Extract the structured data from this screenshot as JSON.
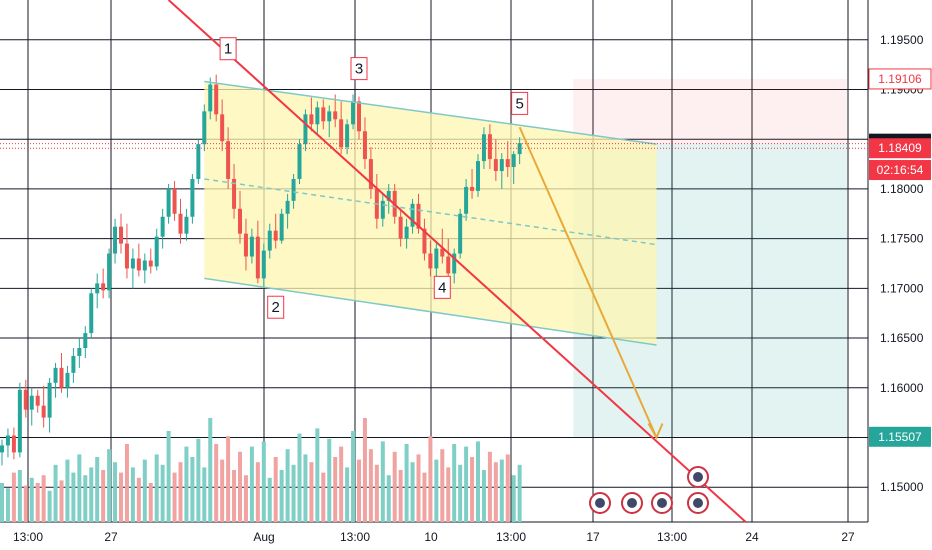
{
  "chart_data": {
    "type": "candlestick",
    "instrument_scale": "price",
    "ylim": [
      1.1465,
      1.199
    ],
    "x_ticks": [
      "13:00",
      "27",
      "Aug",
      "13:00",
      "10",
      "13:00",
      "17",
      "13:00",
      "24",
      "27"
    ],
    "y_ticks": [
      "1.19500",
      "1.19000",
      "1.18500",
      "1.18000",
      "1.17500",
      "1.17000",
      "1.16500",
      "1.16000",
      "1.15500",
      "1.15000"
    ],
    "price_badges": [
      {
        "label": "1.19106",
        "value": 1.19106,
        "color": "#f23645",
        "style": "outline"
      },
      {
        "label": "1.18455",
        "value": 1.18455,
        "color": "#131722",
        "style": "fill"
      },
      {
        "label": "1.18409",
        "value": 1.18409,
        "color": "#f23645",
        "style": "fill"
      },
      {
        "label": "02:16:54",
        "value": 1.1819,
        "color": "#f23645",
        "style": "fill"
      },
      {
        "label": "1.15507",
        "value": 1.15507,
        "color": "#26a69a",
        "style": "fill"
      }
    ],
    "wave_labels": [
      {
        "label": "1",
        "bar": 38,
        "value": 1.194
      },
      {
        "label": "2",
        "bar": 46,
        "value": 1.168
      },
      {
        "label": "3",
        "bar": 60,
        "value": 1.192
      },
      {
        "label": "4",
        "bar": 74,
        "value": 1.17
      },
      {
        "label": "5",
        "bar": 87,
        "value": 1.1885
      }
    ],
    "channel": {
      "upper": [
        {
          "bar": 34,
          "value": 1.1908
        },
        {
          "bar": 110,
          "value": 1.1845
        }
      ],
      "lower": [
        {
          "bar": 34,
          "value": 1.171
        },
        {
          "bar": 110,
          "value": 1.1643
        }
      ],
      "mid": [
        {
          "bar": 34,
          "value": 1.181
        },
        {
          "bar": 110,
          "value": 1.1744
        }
      ]
    },
    "trendline": [
      {
        "bar": 28,
        "value": 1.199
      },
      {
        "bar": 125,
        "value": 1.1465
      }
    ],
    "projection": [
      {
        "bar": 87,
        "value": 1.1862
      },
      {
        "bar": 96,
        "value": 1.174
      },
      {
        "bar": 110,
        "value": 1.155
      }
    ],
    "position_box": {
      "start_bar": 96,
      "end_bar": 142,
      "entry": 1.18455,
      "stop": 1.19106,
      "target": 1.15507
    },
    "colors": {
      "up": "#26a69a",
      "down": "#ef5350",
      "channel_fill": "#fdf5b0",
      "channel_line": "#7fc8c8",
      "trend": "#f23645",
      "projection": "#e9a93a"
    },
    "candles": [
      [
        1.1535,
        1.1548,
        1.1522,
        1.1542
      ],
      [
        1.1542,
        1.1559,
        1.153,
        1.1552
      ],
      [
        1.1552,
        1.156,
        1.1528,
        1.1535
      ],
      [
        1.1535,
        1.1605,
        1.153,
        1.1598
      ],
      [
        1.1598,
        1.1608,
        1.157,
        1.1578
      ],
      [
        1.1578,
        1.16,
        1.1562,
        1.1592
      ],
      [
        1.1592,
        1.1598,
        1.1575,
        1.1582
      ],
      [
        1.1582,
        1.1602,
        1.156,
        1.157
      ],
      [
        1.157,
        1.161,
        1.1555,
        1.1605
      ],
      [
        1.1605,
        1.1625,
        1.159,
        1.162
      ],
      [
        1.162,
        1.1635,
        1.1595,
        1.16
      ],
      [
        1.16,
        1.1622,
        1.159,
        1.1615
      ],
      [
        1.1615,
        1.164,
        1.1605,
        1.1632
      ],
      [
        1.1632,
        1.165,
        1.162,
        1.164
      ],
      [
        1.164,
        1.1662,
        1.163,
        1.1655
      ],
      [
        1.1655,
        1.17,
        1.165,
        1.1695
      ],
      [
        1.1695,
        1.1715,
        1.168,
        1.1705
      ],
      [
        1.1705,
        1.172,
        1.169,
        1.1698
      ],
      [
        1.1698,
        1.174,
        1.169,
        1.1735
      ],
      [
        1.1735,
        1.177,
        1.1725,
        1.1762
      ],
      [
        1.1762,
        1.1775,
        1.1735,
        1.1745
      ],
      [
        1.1745,
        1.1765,
        1.171,
        1.172
      ],
      [
        1.172,
        1.174,
        1.17,
        1.173
      ],
      [
        1.173,
        1.1745,
        1.1712,
        1.1718
      ],
      [
        1.1718,
        1.1735,
        1.1705,
        1.1728
      ],
      [
        1.1728,
        1.174,
        1.1715,
        1.1722
      ],
      [
        1.1722,
        1.176,
        1.1718,
        1.1752
      ],
      [
        1.1752,
        1.178,
        1.174,
        1.1772
      ],
      [
        1.1772,
        1.1805,
        1.1765,
        1.18
      ],
      [
        1.18,
        1.1808,
        1.1768,
        1.1775
      ],
      [
        1.1775,
        1.179,
        1.1745,
        1.1755
      ],
      [
        1.1755,
        1.178,
        1.1748,
        1.1772
      ],
      [
        1.1772,
        1.1815,
        1.1765,
        1.181
      ],
      [
        1.181,
        1.185,
        1.1805,
        1.1845
      ],
      [
        1.1845,
        1.1885,
        1.1838,
        1.1878
      ],
      [
        1.1878,
        1.1912,
        1.187,
        1.1905
      ],
      [
        1.1905,
        1.1915,
        1.1868,
        1.1875
      ],
      [
        1.1875,
        1.189,
        1.1838,
        1.1848
      ],
      [
        1.1848,
        1.1862,
        1.18,
        1.181
      ],
      [
        1.181,
        1.1825,
        1.177,
        1.178
      ],
      [
        1.178,
        1.1798,
        1.1745,
        1.1755
      ],
      [
        1.1755,
        1.177,
        1.1718,
        1.1732
      ],
      [
        1.1732,
        1.176,
        1.1725,
        1.1752
      ],
      [
        1.1752,
        1.1768,
        1.1705,
        1.171
      ],
      [
        1.171,
        1.1745,
        1.17,
        1.1738
      ],
      [
        1.1738,
        1.1765,
        1.173,
        1.1758
      ],
      [
        1.1758,
        1.1775,
        1.174,
        1.1748
      ],
      [
        1.1748,
        1.178,
        1.1745,
        1.1775
      ],
      [
        1.1775,
        1.1795,
        1.176,
        1.1788
      ],
      [
        1.1788,
        1.1815,
        1.178,
        1.181
      ],
      [
        1.181,
        1.185,
        1.1805,
        1.1845
      ],
      [
        1.1845,
        1.188,
        1.1838,
        1.1875
      ],
      [
        1.1875,
        1.1892,
        1.1858,
        1.1865
      ],
      [
        1.1865,
        1.1888,
        1.1855,
        1.1882
      ],
      [
        1.1882,
        1.189,
        1.186,
        1.1868
      ],
      [
        1.1868,
        1.1884,
        1.1852,
        1.1878
      ],
      [
        1.1878,
        1.1895,
        1.1862,
        1.187
      ],
      [
        1.187,
        1.1888,
        1.1835,
        1.1842
      ],
      [
        1.1842,
        1.187,
        1.1835,
        1.1865
      ],
      [
        1.1865,
        1.1895,
        1.186,
        1.1888
      ],
      [
        1.1888,
        1.1893,
        1.185,
        1.1858
      ],
      [
        1.1858,
        1.1872,
        1.182,
        1.183
      ],
      [
        1.183,
        1.1842,
        1.179,
        1.18
      ],
      [
        1.18,
        1.1815,
        1.176,
        1.177
      ],
      [
        1.177,
        1.1795,
        1.1762,
        1.1788
      ],
      [
        1.1788,
        1.1805,
        1.1775,
        1.1798
      ],
      [
        1.1798,
        1.1805,
        1.1765,
        1.1772
      ],
      [
        1.1772,
        1.178,
        1.1742,
        1.175
      ],
      [
        1.175,
        1.177,
        1.174,
        1.1762
      ],
      [
        1.1762,
        1.179,
        1.1755,
        1.1785
      ],
      [
        1.1785,
        1.1795,
        1.1755,
        1.176
      ],
      [
        1.176,
        1.177,
        1.1728,
        1.1735
      ],
      [
        1.1735,
        1.1748,
        1.1712,
        1.172
      ],
      [
        1.172,
        1.1745,
        1.171,
        1.174
      ],
      [
        1.174,
        1.176,
        1.1725,
        1.1732
      ],
      [
        1.1732,
        1.175,
        1.1708,
        1.1715
      ],
      [
        1.1715,
        1.174,
        1.1705,
        1.1735
      ],
      [
        1.1735,
        1.178,
        1.173,
        1.1775
      ],
      [
        1.1775,
        1.181,
        1.1768,
        1.1802
      ],
      [
        1.1802,
        1.182,
        1.179,
        1.1798
      ],
      [
        1.1798,
        1.1835,
        1.1792,
        1.1828
      ],
      [
        1.1828,
        1.1862,
        1.182,
        1.1855
      ],
      [
        1.1855,
        1.1865,
        1.182,
        1.183
      ],
      [
        1.183,
        1.185,
        1.1808,
        1.1818
      ],
      [
        1.1818,
        1.1836,
        1.18,
        1.183
      ],
      [
        1.183,
        1.1848,
        1.1812,
        1.1822
      ],
      [
        1.1822,
        1.1838,
        1.1805,
        1.1835
      ],
      [
        1.1835,
        1.1852,
        1.1825,
        1.1846
      ]
    ],
    "volume": [
      30,
      26,
      38,
      40,
      28,
      34,
      30,
      36,
      24,
      44,
      32,
      48,
      38,
      52,
      36,
      42,
      50,
      40,
      56,
      46,
      38,
      60,
      42,
      34,
      48,
      30,
      52,
      44,
      70,
      38,
      46,
      58,
      50,
      64,
      42,
      80,
      60,
      48,
      66,
      40,
      54,
      36,
      58,
      46,
      62,
      34,
      50,
      40,
      56,
      44,
      68,
      52,
      46,
      72,
      38,
      64,
      50,
      58,
      42,
      70,
      48,
      80,
      56,
      44,
      62,
      36,
      54,
      40,
      60,
      46,
      52,
      38,
      66,
      48,
      56,
      42,
      60,
      44,
      58,
      50,
      62,
      40,
      54,
      46,
      48,
      52,
      36,
      44
    ]
  }
}
